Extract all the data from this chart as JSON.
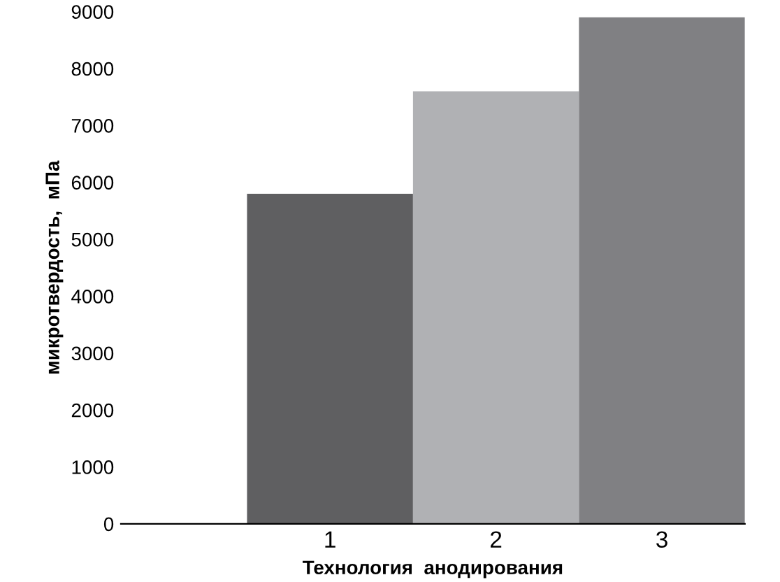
{
  "chart_data": {
    "type": "bar",
    "xlabel": "Технология  анодирования",
    "ylabel": "микротвердость,  мПа",
    "categories": [
      "1",
      "2",
      "3"
    ],
    "values": [
      5800,
      7600,
      8900
    ],
    "colors": [
      "#5f5f61",
      "#b0b1b4",
      "#808083"
    ],
    "ylim": [
      0,
      9000
    ],
    "yticks": [
      0,
      1000,
      2000,
      3000,
      4000,
      5000,
      6000,
      7000,
      8000,
      9000
    ],
    "grid": false,
    "legend": false
  }
}
